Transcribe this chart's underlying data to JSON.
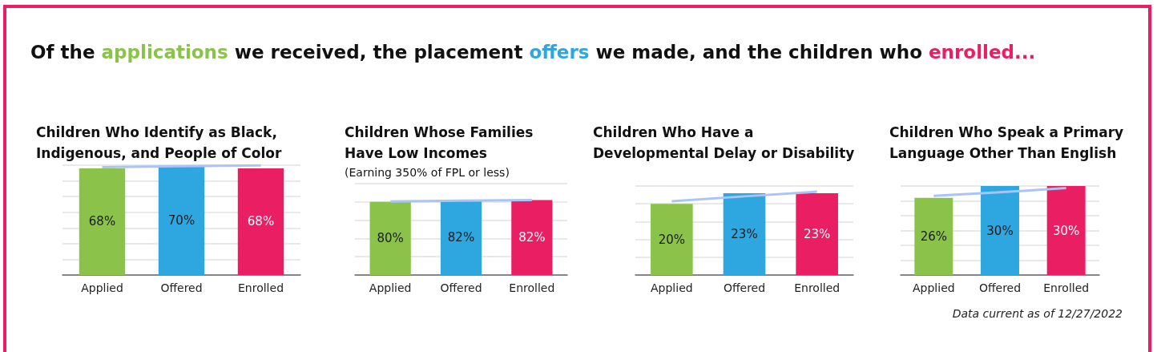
{
  "chart_data": [
    {
      "type": "bar",
      "title": "Children Who Identify as Black, Indigenous, and People of Color",
      "annotations": [
        "Of the applications we received, the placement offers we made, and the children who enrolled..."
      ],
      "categories": [
        "Applied",
        "Offered",
        "Enrolled"
      ],
      "colors": [
        "#8bc34a",
        "#2ea6df",
        "#e91e63"
      ],
      "values": [
        68,
        70,
        68
      ],
      "value_labels": [
        "68%",
        "70%",
        "68%"
      ],
      "grid": "y",
      "tick_labels": "x",
      "series": [
        {
          "type": "line",
          "color": "#a9c4f5",
          "marker": "none",
          "values": [
            68.7,
            69.3,
            69.9
          ]
        }
      ]
    },
    {
      "type": "bar",
      "title": "Children Whose Families Have Low Incomes",
      "subtitle": "(Earning 350% of FPL or less)",
      "categories": [
        "Applied",
        "Offered",
        "Enrolled"
      ],
      "colors": [
        "#8bc34a",
        "#2ea6df",
        "#e91e63"
      ],
      "values": [
        80,
        82,
        82
      ],
      "value_labels": [
        "80%",
        "82%",
        "82%"
      ],
      "grid": "y",
      "tick_labels": "x",
      "series": [
        {
          "type": "line",
          "color": "#a9c4f5",
          "marker": "none",
          "values": [
            80.5,
            81.3,
            82.1
          ]
        }
      ]
    },
    {
      "type": "bar",
      "title": "Children Who Have a Developmental Delay or Disability",
      "categories": [
        "Applied",
        "Offered",
        "Enrolled"
      ],
      "colors": [
        "#8bc34a",
        "#2ea6df",
        "#e91e63"
      ],
      "values": [
        20,
        23,
        23
      ],
      "value_labels": [
        "20%",
        "23%",
        "23%"
      ],
      "grid": "y",
      "tick_labels": "x",
      "series": [
        {
          "type": "line",
          "color": "#a9c4f5",
          "marker": "none",
          "values": [
            20.7,
            22.1,
            23.4
          ]
        }
      ]
    },
    {
      "type": "bar",
      "title": "Children Who Speak a Primary Language Other Than English",
      "annotations": [
        "Data current as of 12/27/2022"
      ],
      "categories": [
        "Applied",
        "Offered",
        "Enrolled"
      ],
      "colors": [
        "#8bc34a",
        "#2ea6df",
        "#e91e63"
      ],
      "values": [
        26,
        30,
        30
      ],
      "value_labels": [
        "26%",
        "30%",
        "30%"
      ],
      "grid": "y",
      "tick_labels": "x",
      "series": [
        {
          "type": "line",
          "color": "#a9c4f5",
          "marker": "none",
          "values": [
            26.7,
            27.9,
            29.3
          ]
        }
      ]
    }
  ]
}
